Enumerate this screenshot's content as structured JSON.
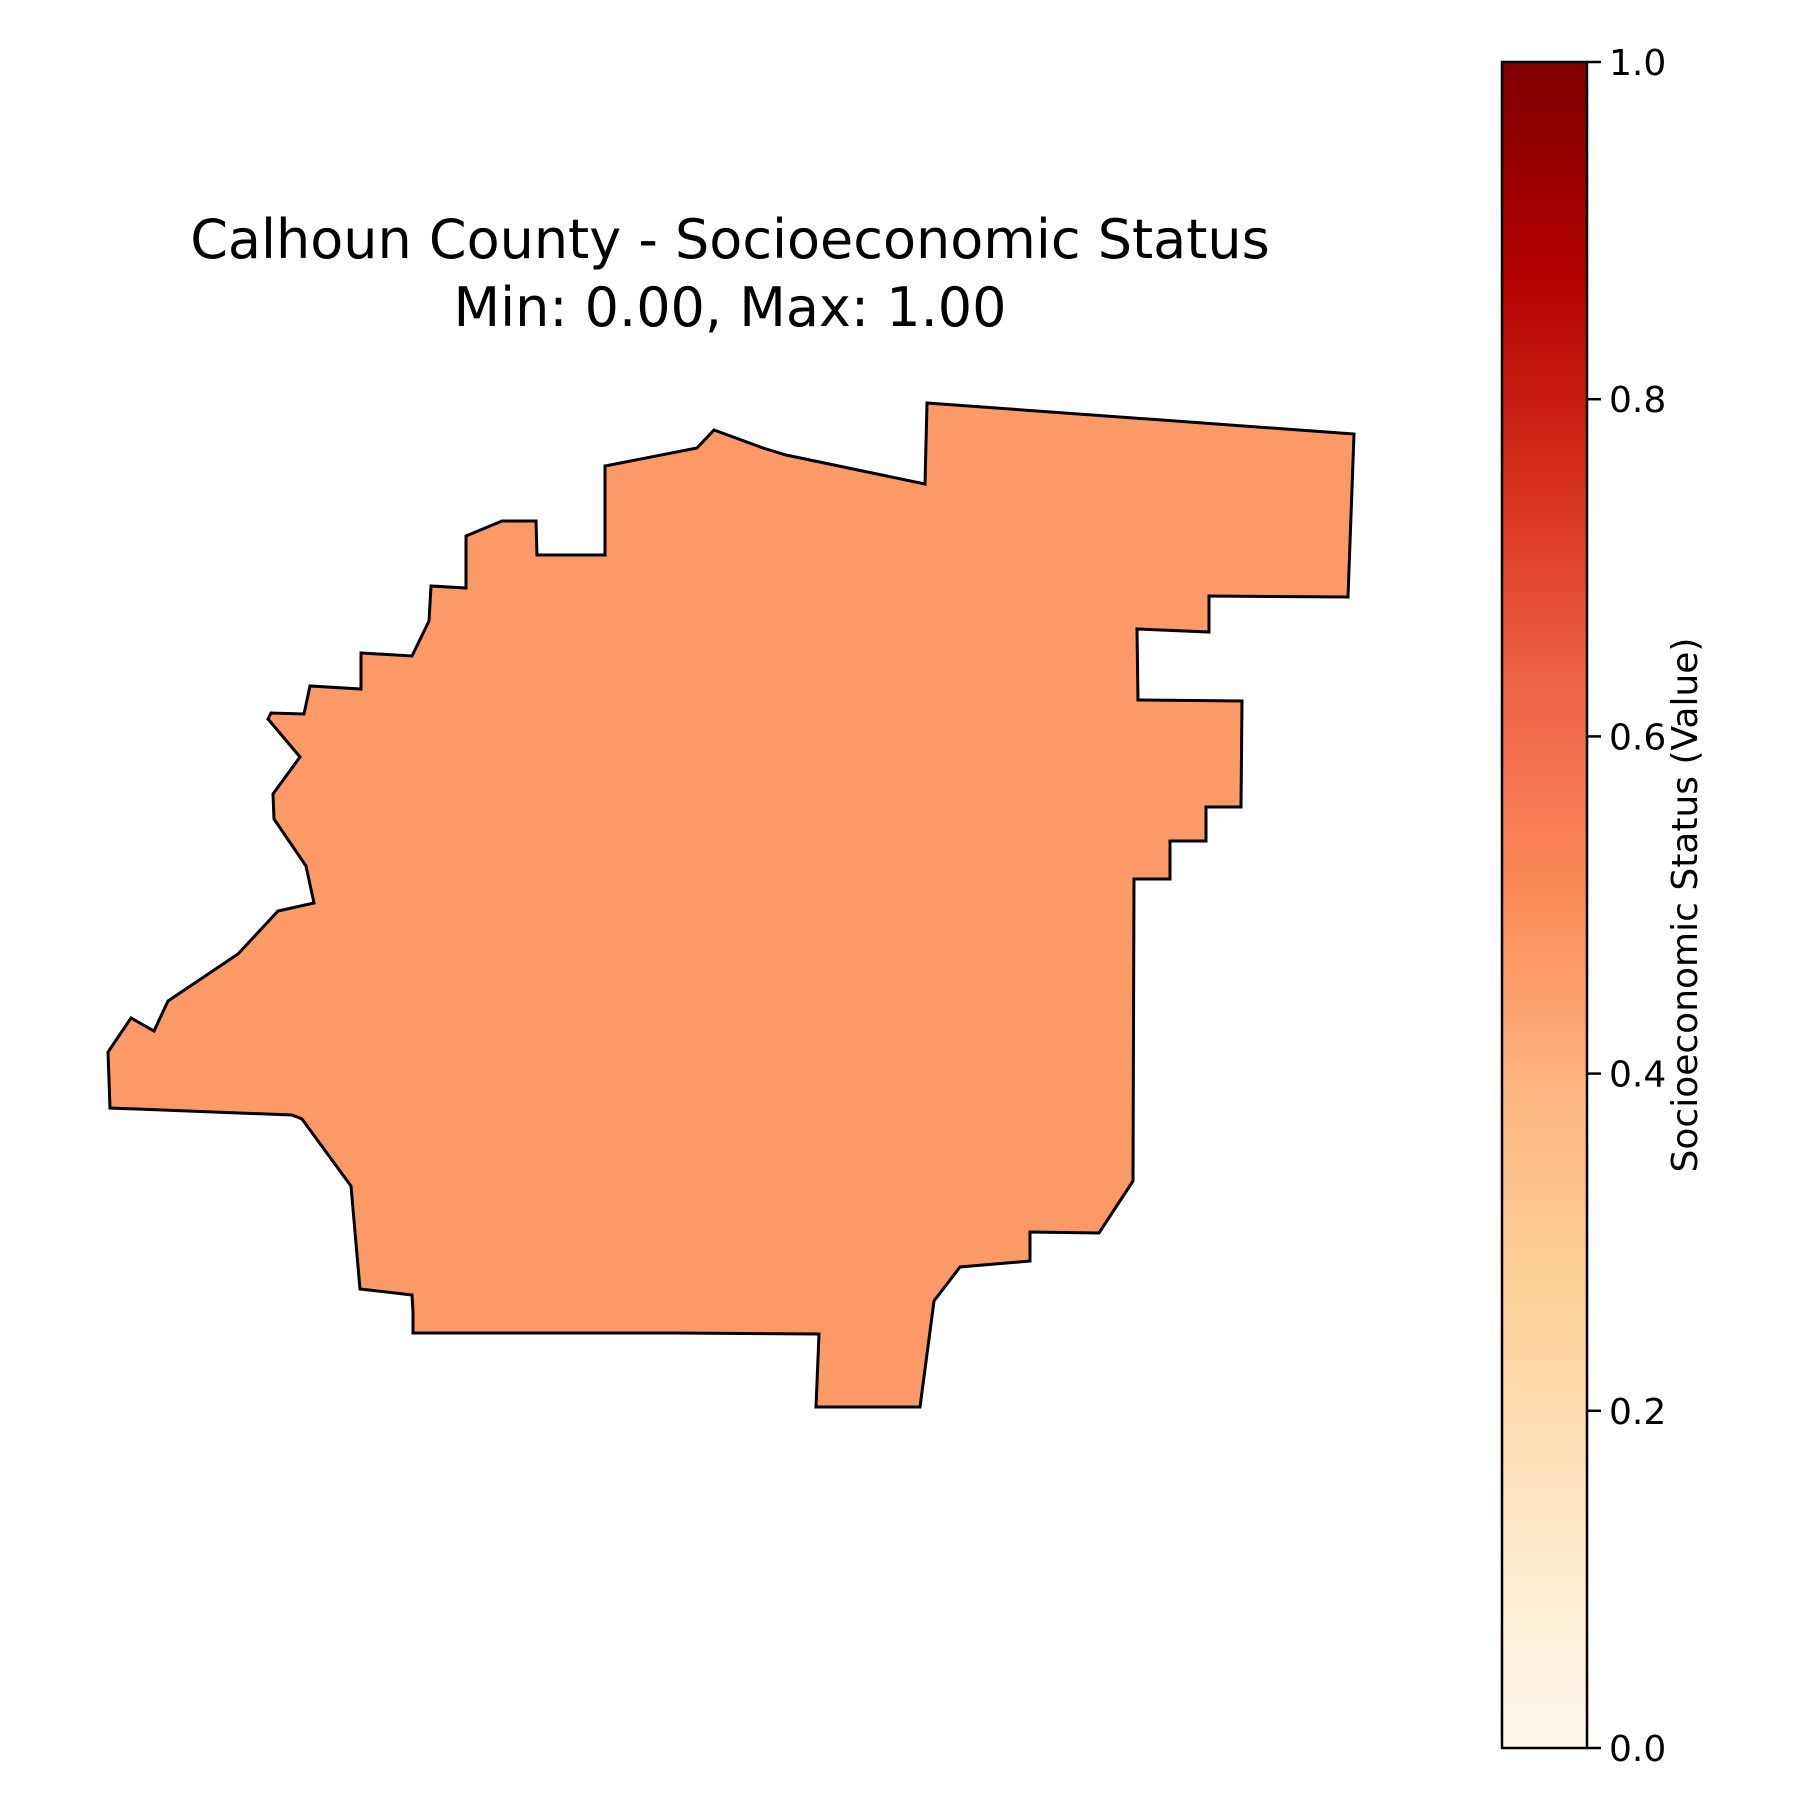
{
  "map": {
    "title_line1": "Calhoun County - Socioeconomic Status",
    "title_line2": "Min: 0.00, Max: 1.00",
    "region_name": "Calhoun County",
    "value": 0.5,
    "fill_color": "#fb9a66",
    "outline_color": "#000000"
  },
  "colorbar": {
    "label": "Socioeconomic Status (Value)",
    "colormap": "OrRd",
    "range": [
      0.0,
      1.0
    ],
    "ticks": [
      {
        "value": 0.0,
        "label": "0.0"
      },
      {
        "value": 0.2,
        "label": "0.2"
      },
      {
        "value": 0.4,
        "label": "0.4"
      },
      {
        "value": 0.6,
        "label": "0.6"
      },
      {
        "value": 0.8,
        "label": "0.8"
      },
      {
        "value": 1.0,
        "label": "1.0"
      }
    ],
    "stops": [
      {
        "value": 0.0,
        "color": "#fff7ec"
      },
      {
        "value": 0.125,
        "color": "#fee8c8"
      },
      {
        "value": 0.25,
        "color": "#fdd49e"
      },
      {
        "value": 0.375,
        "color": "#fdbb84"
      },
      {
        "value": 0.5,
        "color": "#fc8d59"
      },
      {
        "value": 0.625,
        "color": "#ef6548"
      },
      {
        "value": 0.75,
        "color": "#d7301f"
      },
      {
        "value": 0.875,
        "color": "#b30000"
      },
      {
        "value": 1.0,
        "color": "#7f0000"
      }
    ]
  }
}
